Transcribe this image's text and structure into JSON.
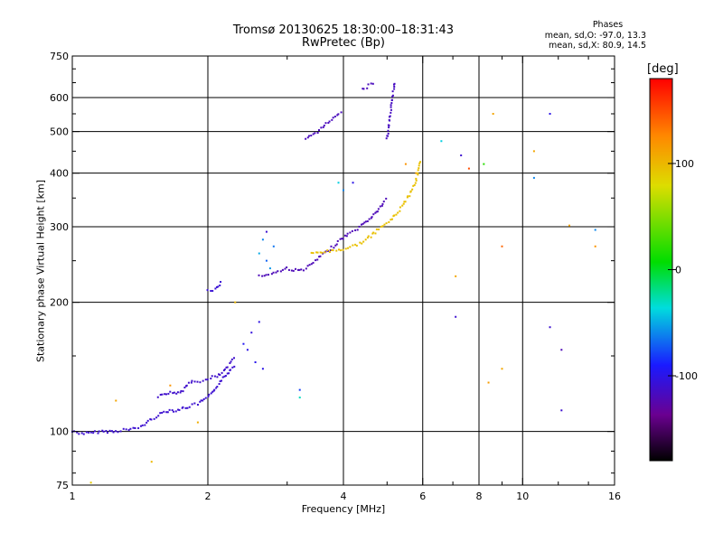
{
  "chart_data": {
    "type": "scatter",
    "title": "Tromsø 20130625 18:30:00–18:31:43",
    "subtitle": "RwPretec (Bp)",
    "xlabel": "Frequency [MHz]",
    "ylabel": "Stationary phase Virtual Height [km]",
    "x_scale": "log",
    "y_scale": "log",
    "xlim": [
      1,
      16
    ],
    "ylim": [
      75,
      750
    ],
    "x_ticks": [
      "1",
      "2",
      "4",
      "6",
      "8",
      "10",
      "16"
    ],
    "x_tick_values": [
      1,
      2,
      4,
      6,
      8,
      10,
      16
    ],
    "y_ticks": [
      "75",
      "100",
      "200",
      "300",
      "400",
      "500",
      "600",
      "750"
    ],
    "y_tick_values": [
      75,
      100,
      200,
      300,
      400,
      500,
      600,
      750
    ],
    "grid": true,
    "phase_stats": {
      "heading": "Phases",
      "line_o": "mean, sd,O: -97.0, 13.3",
      "line_x": "mean, sd,X:  80.9, 14.5"
    },
    "colorbar": {
      "unit": "[deg]",
      "range": [
        -180,
        180
      ],
      "ticks": [
        "100",
        "0",
        "-100"
      ],
      "tick_values": [
        100,
        0,
        -100
      ]
    },
    "traces": [
      {
        "points": [
          [
            1.0,
            100
          ],
          [
            1.05,
            99
          ],
          [
            1.1,
            99
          ],
          [
            1.15,
            100
          ],
          [
            1.2,
            100
          ],
          [
            1.25,
            100
          ],
          [
            1.3,
            101
          ],
          [
            1.35,
            101
          ],
          [
            1.4,
            102
          ],
          [
            1.45,
            104
          ],
          [
            1.5,
            107
          ],
          [
            1.55,
            109
          ],
          [
            1.6,
            111
          ],
          [
            1.65,
            112
          ],
          [
            1.7,
            112
          ],
          [
            1.75,
            113
          ],
          [
            1.8,
            114
          ],
          [
            1.85,
            115
          ],
          [
            1.9,
            116
          ],
          [
            1.95,
            118
          ],
          [
            2.0,
            120
          ],
          [
            2.05,
            123
          ],
          [
            2.1,
            128
          ],
          [
            2.15,
            132
          ],
          [
            2.2,
            135
          ],
          [
            2.25,
            140
          ],
          [
            2.3,
            143
          ]
        ],
        "phase": -110
      },
      {
        "points": [
          [
            1.55,
            121
          ],
          [
            1.6,
            123
          ],
          [
            1.65,
            123
          ],
          [
            1.7,
            123
          ],
          [
            1.75,
            124
          ],
          [
            1.8,
            128
          ],
          [
            1.85,
            131
          ],
          [
            1.9,
            131
          ],
          [
            1.95,
            131
          ],
          [
            2.0,
            132
          ],
          [
            2.05,
            134
          ],
          [
            2.1,
            134
          ],
          [
            2.15,
            137
          ],
          [
            2.2,
            140
          ],
          [
            2.25,
            145
          ],
          [
            2.3,
            150
          ]
        ],
        "phase": -112
      },
      {
        "points": [
          [
            2.0,
            214
          ],
          [
            2.05,
            214
          ],
          [
            2.1,
            216
          ],
          [
            2.15,
            225
          ]
        ],
        "phase": -108
      },
      {
        "points": [
          [
            2.6,
            230
          ],
          [
            2.7,
            232
          ],
          [
            2.8,
            234
          ],
          [
            2.9,
            237
          ],
          [
            3.0,
            240
          ],
          [
            3.1,
            238
          ],
          [
            3.2,
            237
          ],
          [
            3.3,
            240
          ],
          [
            3.4,
            245
          ],
          [
            3.5,
            252
          ],
          [
            3.6,
            258
          ],
          [
            3.7,
            264
          ],
          [
            3.8,
            270
          ],
          [
            3.9,
            277
          ],
          [
            4.0,
            283
          ],
          [
            4.1,
            288
          ],
          [
            4.2,
            292
          ],
          [
            4.3,
            297
          ],
          [
            4.4,
            302
          ],
          [
            4.5,
            308
          ],
          [
            4.6,
            315
          ],
          [
            4.7,
            322
          ],
          [
            4.8,
            330
          ],
          [
            4.9,
            340
          ],
          [
            5.0,
            350
          ]
        ],
        "phase": -120
      },
      {
        "points": [
          [
            3.4,
            260
          ],
          [
            3.6,
            262
          ],
          [
            3.8,
            264
          ],
          [
            4.0,
            266
          ],
          [
            4.2,
            270
          ],
          [
            4.4,
            276
          ],
          [
            4.6,
            285
          ],
          [
            4.8,
            296
          ],
          [
            5.0,
            306
          ],
          [
            5.2,
            318
          ],
          [
            5.4,
            335
          ],
          [
            5.6,
            356
          ],
          [
            5.8,
            385
          ],
          [
            5.95,
            430
          ]
        ],
        "phase": 95
      },
      {
        "points": [
          [
            3.3,
            478
          ],
          [
            3.4,
            490
          ],
          [
            3.5,
            500
          ],
          [
            3.6,
            512
          ],
          [
            3.7,
            525
          ],
          [
            3.8,
            540
          ],
          [
            3.9,
            552
          ],
          [
            4.0,
            560
          ]
        ],
        "phase": -118
      },
      {
        "points": [
          [
            4.4,
            625
          ],
          [
            4.5,
            635
          ],
          [
            4.6,
            645
          ],
          [
            4.7,
            655
          ]
        ],
        "phase": -118
      },
      {
        "points": [
          [
            5.0,
            480
          ],
          [
            5.05,
            520
          ],
          [
            5.1,
            560
          ],
          [
            5.15,
            610
          ],
          [
            5.2,
            655
          ]
        ],
        "phase": -116
      }
    ],
    "scatter_points": [
      {
        "x": 2.45,
        "y": 155,
        "phase": -100
      },
      {
        "x": 2.5,
        "y": 170,
        "phase": -105
      },
      {
        "x": 2.55,
        "y": 145,
        "phase": -98
      },
      {
        "x": 2.6,
        "y": 180,
        "phase": -102
      },
      {
        "x": 2.65,
        "y": 140,
        "phase": -100
      },
      {
        "x": 2.4,
        "y": 160,
        "phase": -95
      },
      {
        "x": 2.6,
        "y": 260,
        "phase": -50
      },
      {
        "x": 2.65,
        "y": 280,
        "phase": -60
      },
      {
        "x": 2.7,
        "y": 250,
        "phase": -70
      },
      {
        "x": 2.75,
        "y": 240,
        "phase": -55
      },
      {
        "x": 2.8,
        "y": 270,
        "phase": -65
      },
      {
        "x": 2.7,
        "y": 292,
        "phase": -110
      },
      {
        "x": 3.2,
        "y": 120,
        "phase": -30
      },
      {
        "x": 3.2,
        "y": 125,
        "phase": -80
      },
      {
        "x": 3.9,
        "y": 380,
        "phase": -40
      },
      {
        "x": 4.0,
        "y": 365,
        "phase": -60
      },
      {
        "x": 4.2,
        "y": 380,
        "phase": -100
      },
      {
        "x": 1.1,
        "y": 76,
        "phase": 90
      },
      {
        "x": 1.25,
        "y": 118,
        "phase": 110
      },
      {
        "x": 1.5,
        "y": 85,
        "phase": 100
      },
      {
        "x": 1.65,
        "y": 128,
        "phase": 120
      },
      {
        "x": 1.9,
        "y": 105,
        "phase": 105
      },
      {
        "x": 2.3,
        "y": 200,
        "phase": 100
      },
      {
        "x": 6.6,
        "y": 475,
        "phase": -40
      },
      {
        "x": 7.1,
        "y": 230,
        "phase": 110
      },
      {
        "x": 7.3,
        "y": 440,
        "phase": -110
      },
      {
        "x": 7.6,
        "y": 410,
        "phase": 150
      },
      {
        "x": 8.2,
        "y": 420,
        "phase": 20
      },
      {
        "x": 8.6,
        "y": 550,
        "phase": 110
      },
      {
        "x": 7.1,
        "y": 185,
        "phase": -110
      },
      {
        "x": 8.4,
        "y": 130,
        "phase": 115
      },
      {
        "x": 9.0,
        "y": 140,
        "phase": 110
      },
      {
        "x": 9.0,
        "y": 270,
        "phase": 140
      },
      {
        "x": 10.6,
        "y": 450,
        "phase": 110
      },
      {
        "x": 10.6,
        "y": 390,
        "phase": -60
      },
      {
        "x": 11.5,
        "y": 550,
        "phase": -100
      },
      {
        "x": 11.5,
        "y": 175,
        "phase": -110
      },
      {
        "x": 12.2,
        "y": 155,
        "phase": -120
      },
      {
        "x": 12.2,
        "y": 112,
        "phase": -110
      },
      {
        "x": 12.7,
        "y": 302,
        "phase": 110
      },
      {
        "x": 14.5,
        "y": 270,
        "phase": 120
      },
      {
        "x": 14.5,
        "y": 295,
        "phase": -60
      },
      {
        "x": 5.5,
        "y": 420,
        "phase": 120
      },
      {
        "x": 5.8,
        "y": 400,
        "phase": 110
      }
    ]
  }
}
